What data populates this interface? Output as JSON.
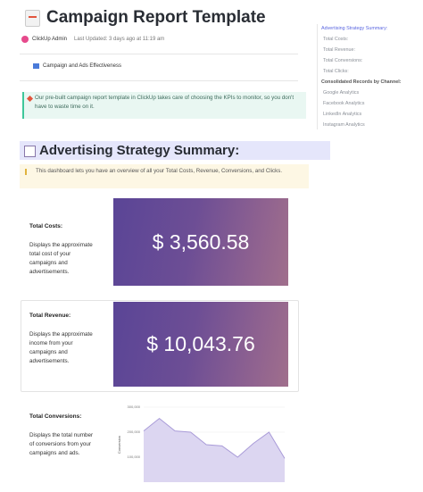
{
  "header": {
    "title": "Campaign Report Template",
    "author": "ClickUp Admin",
    "updated": "Last Updated: 3 days ago at 11:19 am"
  },
  "tag": "Campaign and Ads Effectiveness",
  "callout": "Our pre-built campaign report template in ClickUp takes care of choosing the KPIs to monitor, so you don't have to waste time on it.",
  "section": {
    "heading": "Advertising Strategy Summary:",
    "note": "This dashboard lets you have an overview of all your Total Costs, Revenue, Conversions, and Clicks."
  },
  "cards": [
    {
      "label": "Total Costs:",
      "description": "Displays the approximate total cost of your campaigns and advertisements.",
      "value": "$ 3,560.58"
    },
    {
      "label": "Total Revenue:",
      "description": "Displays the approximate income from your campaigns and advertisements.",
      "value": "$ 10,043.76"
    },
    {
      "label": "Total Conversions:",
      "description": "Displays the total number of conversions from your campaigns and ads."
    }
  ],
  "chart_data": {
    "type": "area",
    "y_label": "Conversion",
    "values": [
      205000,
      255000,
      205000,
      200000,
      150000,
      145000,
      100000,
      155000,
      200000,
      95000
    ],
    "color": "#a99bd8",
    "ylim": [
      0,
      300000
    ],
    "yticks": [
      {
        "value": 100000,
        "label": "100,000"
      },
      {
        "value": 200000,
        "label": "200,000"
      },
      {
        "value": 300000,
        "label": "300,000"
      }
    ],
    "grid": true
  },
  "toc": [
    "Advertising Strategy Summary:",
    "Total Costs:",
    "Total Revenue:",
    "Total Conversions:",
    "Total Clicks:",
    "Consolidated Records by Channel:",
    "Google Analytics",
    "Facebook Analytics",
    "LinkedIn Analytics",
    "Instagram Analytics"
  ]
}
